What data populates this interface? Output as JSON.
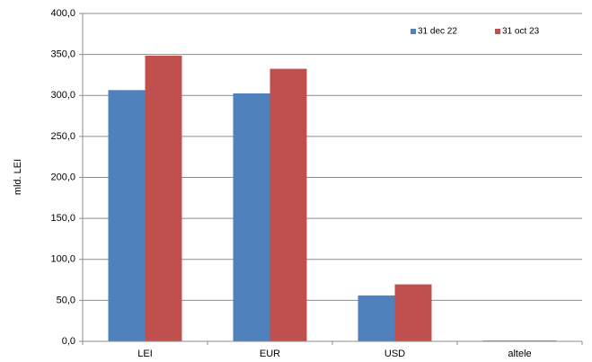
{
  "chart_data": {
    "type": "bar",
    "y_label": "mld. LEI",
    "categories": [
      "LEI",
      "EUR",
      "USD",
      "altele"
    ],
    "series": [
      {
        "name": "31 dec 22",
        "color": "#4f81bd",
        "values": [
          306.5,
          302.5,
          56.0,
          1.0
        ]
      },
      {
        "name": "31 oct 23",
        "color": "#c0504d",
        "values": [
          348.5,
          332.5,
          69.5,
          1.0
        ]
      }
    ],
    "ylim": [
      0,
      400
    ],
    "yticks": [
      {
        "value": 0,
        "label": "0,0"
      },
      {
        "value": 50,
        "label": "50,0"
      },
      {
        "value": 100,
        "label": "100,0"
      },
      {
        "value": 150,
        "label": "150,0"
      },
      {
        "value": 200,
        "label": "200,0"
      },
      {
        "value": 250,
        "label": "250,0"
      },
      {
        "value": 300,
        "label": "300,0"
      },
      {
        "value": 350,
        "label": "350,0"
      },
      {
        "value": 400,
        "label": "400,0"
      }
    ],
    "grid": true,
    "legend": "upper right"
  }
}
